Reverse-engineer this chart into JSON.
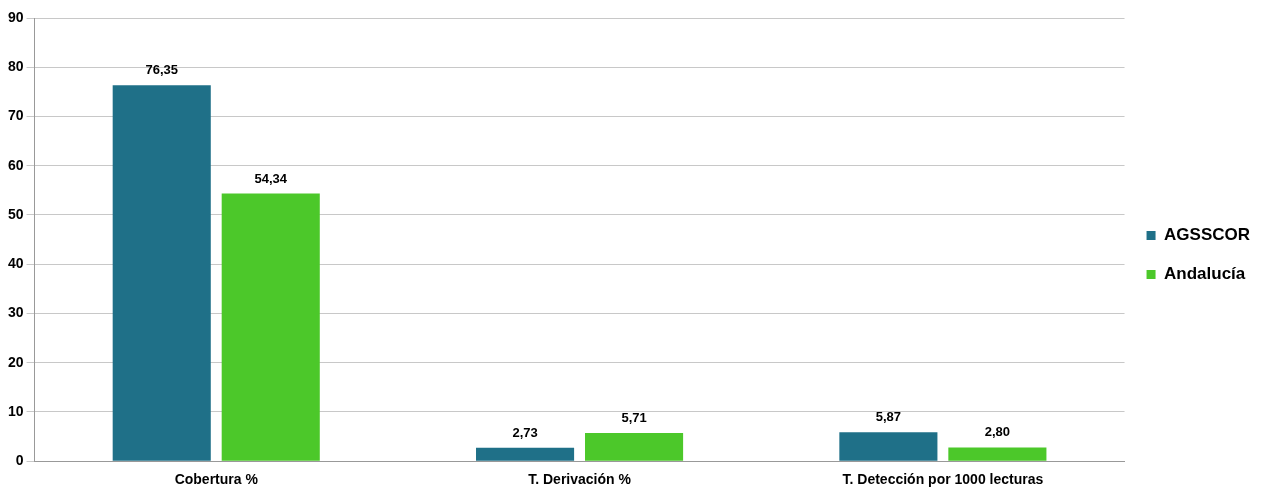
{
  "chart_data": {
    "type": "bar",
    "categories": [
      "Cobertura %",
      "T. Derivación %",
      "T. Detección por 1000 lecturas"
    ],
    "series": [
      {
        "name": "AGSSCOR",
        "color": "#1f7088",
        "values": [
          76.35,
          2.73,
          5.87
        ],
        "value_labels": [
          "76,35",
          "2,73",
          "5,87"
        ]
      },
      {
        "name": "Andalucía",
        "color": "#4cc82a",
        "values": [
          54.34,
          5.71,
          2.8
        ],
        "value_labels": [
          "54,34",
          "5,71",
          "2,80"
        ]
      }
    ],
    "ylim": [
      0,
      90
    ],
    "yticks": [
      0,
      10,
      20,
      30,
      40,
      50,
      60,
      70,
      80,
      90
    ],
    "grid": "y",
    "legend": "right"
  }
}
